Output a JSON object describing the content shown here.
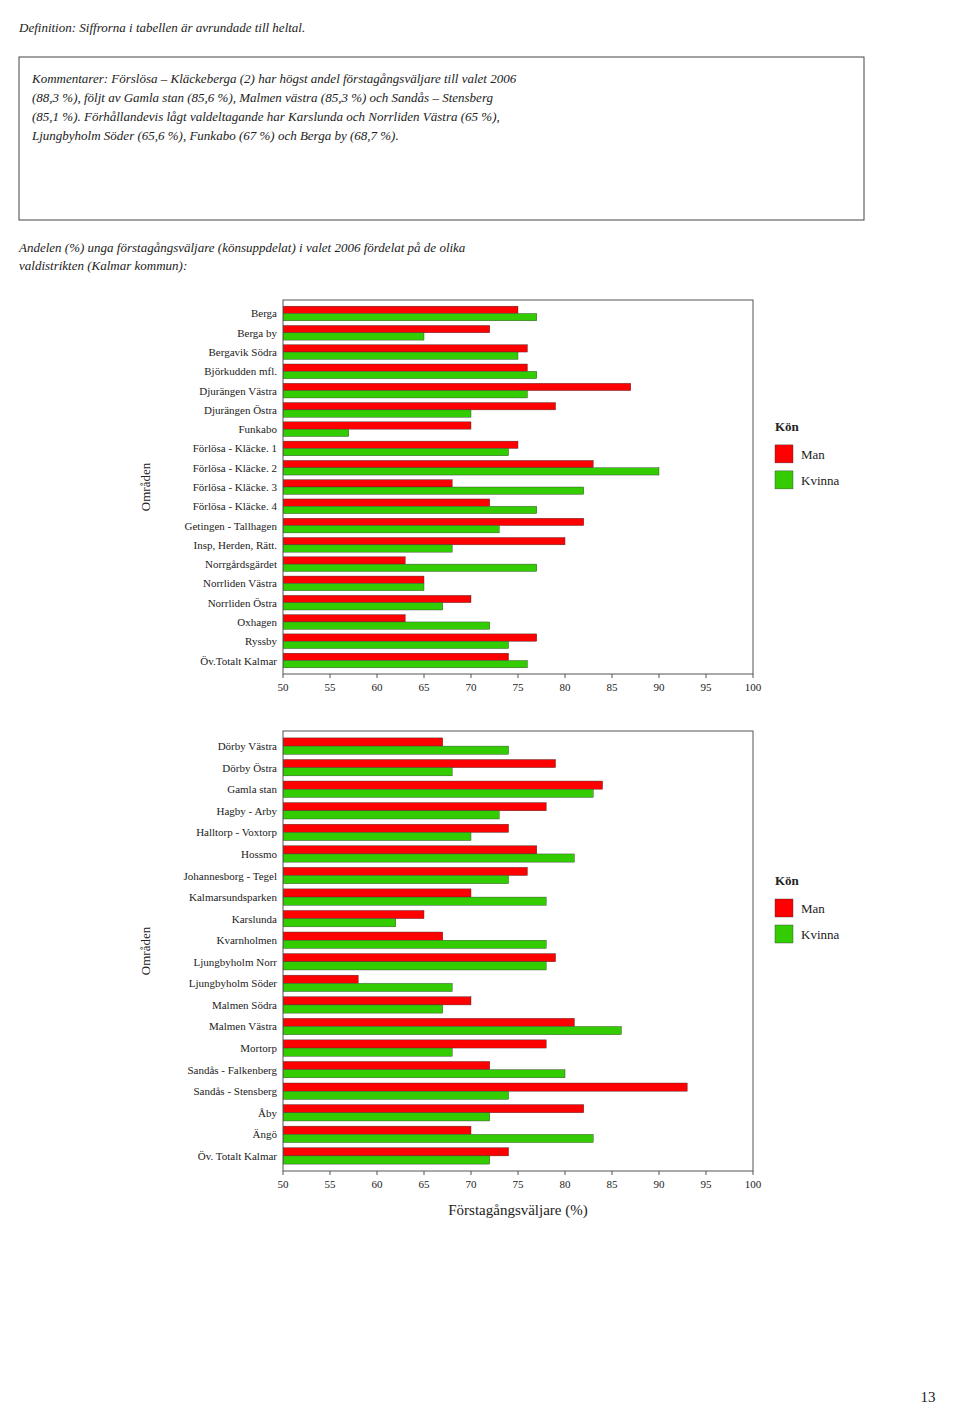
{
  "chart_data": [
    {
      "type": "bar",
      "orientation": "horizontal",
      "annotations": [
        "Definition: Siffrorna i tabellen är avrundade till heltal.",
        "Kommentarer: Förslösa – Kläckeberga (2) har högst andel förstagångsväljare till valet 2006",
        "(88,3 %), följt av Gamla stan (85,6 %), Malmen västra (85,3 %) och Sandås – Stensberg",
        "(85,1 %). Förhållandevis lågt valdeltagande har Karslunda och Norrliden Västra (65 %),",
        "Ljungbyholm Söder (65,6 %), Funkabo (67 %) och Berga by (68,7 %).",
        "13"
      ],
      "subtitle": [
        "Andelen (%) unga förstagångsväljare (könsuppdelat) i valet 2006 fördelat på de olika",
        "valdistrikten (Kalmar kommun):"
      ],
      "y_label": "Områden",
      "categories": [
        "Berga",
        "Berga by",
        "Bergavik Södra",
        "Björkudden mfl.",
        "Djurängen Västra",
        "Djurängen Östra",
        "Funkabo",
        "Förlösa - Kläcke. 1",
        "Förlösa - Kläcke. 2",
        "Förlösa - Kläcke. 3",
        "Förlösa - Kläcke. 4",
        "Getingen - Tallhagen",
        "Insp, Herden, Rätt.",
        "Norrgårdsgärdet",
        "Norrliden Västra",
        "Norrliden Östra",
        "Oxhagen",
        "Ryssby",
        "Öv.Totalt Kalmar"
      ],
      "series": [
        {
          "name": "Man",
          "color": "#FF0000",
          "values": [
            75,
            72,
            76,
            76,
            87,
            79,
            70,
            75,
            83,
            68,
            72,
            82,
            80,
            63,
            65,
            70,
            63,
            77,
            74
          ]
        },
        {
          "name": "Kvinna",
          "color": "#33CC00",
          "values": [
            77,
            65,
            75,
            77,
            76,
            70,
            57,
            74,
            90,
            82,
            77,
            73,
            68,
            77,
            65,
            67,
            72,
            74,
            76
          ]
        }
      ],
      "xlim": [
        50,
        100
      ],
      "xticks": [
        50,
        55,
        60,
        65,
        70,
        75,
        80,
        85,
        90,
        95,
        100
      ],
      "grid": false,
      "legend": "right",
      "legend_title": "Kön"
    },
    {
      "type": "bar",
      "orientation": "horizontal",
      "x_label": "Förstagångsväljare (%)",
      "y_label": "Områden",
      "categories": [
        "Dörby Västra",
        "Dörby Östra",
        "Gamla stan",
        "Hagby - Arby",
        "Halltorp - Voxtorp",
        "Hossmo",
        "Johannesborg - Tegel",
        "Kalmarsundsparken",
        "Karslunda",
        "Kvarnholmen",
        "Ljungbyholm Norr",
        "Ljungbyholm Söder",
        "Malmen Södra",
        "Malmen Västra",
        "Mortorp",
        "Sandås - Falkenberg",
        "Sandås - Stensberg",
        "Åby",
        "Ängö",
        "Öv. Totalt Kalmar"
      ],
      "series": [
        {
          "name": "Man",
          "color": "#FF0000",
          "values": [
            67,
            79,
            84,
            78,
            74,
            77,
            76,
            70,
            65,
            67,
            79,
            58,
            70,
            81,
            78,
            72,
            93,
            82,
            70,
            74
          ]
        },
        {
          "name": "Kvinna",
          "color": "#33CC00",
          "values": [
            74,
            68,
            83,
            73,
            70,
            81,
            74,
            78,
            62,
            78,
            78,
            68,
            67,
            86,
            68,
            80,
            74,
            72,
            83,
            72
          ]
        }
      ],
      "xlim": [
        50,
        100
      ],
      "xticks": [
        50,
        55,
        60,
        65,
        70,
        75,
        80,
        85,
        90,
        95,
        100
      ],
      "grid": false,
      "legend": "right",
      "legend_title": "Kön"
    }
  ]
}
